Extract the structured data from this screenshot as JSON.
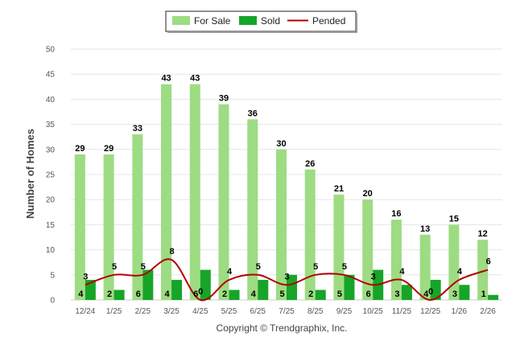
{
  "chart_data": {
    "type": "bar",
    "categories": [
      "12/24",
      "1/25",
      "2/25",
      "3/25",
      "4/25",
      "5/25",
      "6/25",
      "7/25",
      "8/25",
      "9/25",
      "10/25",
      "11/25",
      "12/25",
      "1/26",
      "2/26"
    ],
    "series": [
      {
        "name": "For Sale",
        "type": "bar",
        "color": "#9ddc82",
        "values": [
          29,
          29,
          33,
          43,
          43,
          39,
          36,
          30,
          26,
          21,
          20,
          16,
          13,
          15,
          12
        ]
      },
      {
        "name": "Sold",
        "type": "bar",
        "color": "#16a528",
        "values": [
          4,
          2,
          6,
          4,
          6,
          2,
          4,
          5,
          2,
          5,
          6,
          3,
          4,
          3,
          1
        ]
      },
      {
        "name": "Pended",
        "type": "line",
        "color": "#b30000",
        "values": [
          3,
          5,
          5,
          8,
          0,
          4,
          5,
          3,
          5,
          5,
          3,
          4,
          0,
          4,
          6
        ]
      }
    ],
    "ylabel": "Number of Homes",
    "ylim": [
      0,
      50
    ],
    "yticks": [
      0,
      5,
      10,
      15,
      20,
      25,
      30,
      35,
      40,
      45,
      50
    ],
    "grid": true,
    "legend": "top-center",
    "credit": "Copyright © Trendgraphix, Inc."
  }
}
